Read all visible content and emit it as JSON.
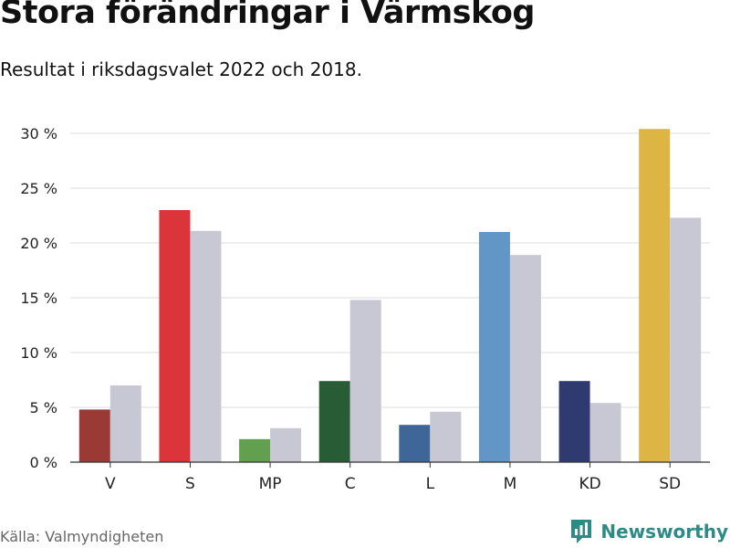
{
  "header": {
    "title": "Stora förändringar i Värmskog",
    "subtitle": "Resultat i riksdagsvalet 2022 och 2018."
  },
  "footer": {
    "source": "Källa: Valmyndigheten",
    "brand": "Newsworthy",
    "brand_icon": "bar-chart-logo-icon",
    "brand_color": "#2d8a84"
  },
  "chart_data": {
    "type": "bar",
    "categories": [
      "V",
      "S",
      "MP",
      "C",
      "L",
      "M",
      "KD",
      "SD"
    ],
    "series": [
      {
        "values": [
          4.8,
          23.0,
          2.1,
          7.4,
          3.4,
          21.0,
          7.4,
          30.4
        ],
        "colors": [
          "#9b3a35",
          "#dc343b",
          "#62a04f",
          "#275c35",
          "#3f6698",
          "#6296c6",
          "#2f3a70",
          "#ddb544"
        ]
      },
      {
        "values": [
          7.0,
          21.1,
          3.1,
          14.8,
          4.6,
          18.9,
          5.4,
          22.3
        ],
        "color": "#c8c8d5"
      }
    ],
    "ylim": [
      0,
      30
    ],
    "yticks": [
      0,
      5,
      10,
      15,
      20,
      25,
      30
    ],
    "ytick_labels": [
      "0 %",
      "5 %",
      "10 %",
      "15 %",
      "20 %",
      "25 %",
      "30 %"
    ],
    "grid": true,
    "legend": false,
    "colors": {
      "grid": "#dddddd",
      "axis": "#333333",
      "text": "#222222"
    }
  }
}
